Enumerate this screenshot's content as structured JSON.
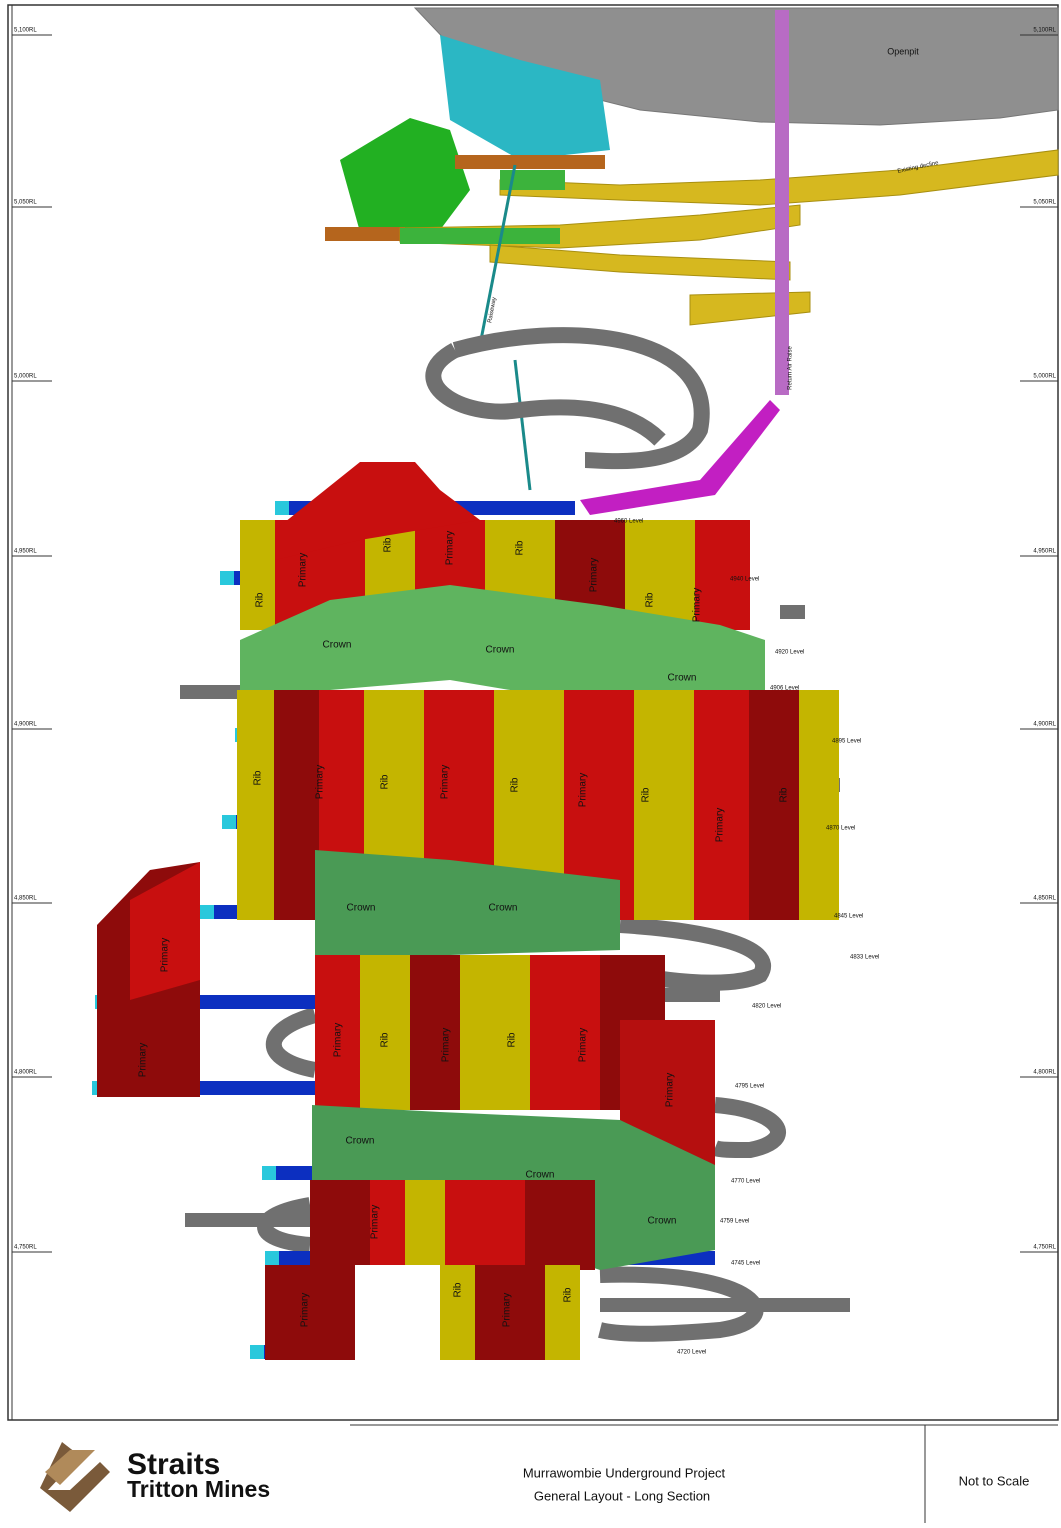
{
  "drawing": {
    "rl_labels": [
      "5,100RL",
      "5,050RL",
      "5,000RL",
      "4,950RL",
      "4,900RL",
      "4,850RL",
      "4,800RL",
      "4,750RL"
    ],
    "level_labels": [
      "4960 Level",
      "4940 Level",
      "4920 Level",
      "4906 Level",
      "4895 Level",
      "4870 Level",
      "4845 Level",
      "4833 Level",
      "4820 Level",
      "4795 Level",
      "4770 Level",
      "4759 Level",
      "4745 Level",
      "4720 Level"
    ],
    "feature_labels": {
      "openpit": "Openpit",
      "decline": "Existing decline",
      "raiseway": "Raiseway",
      "return_air": "Return Air Raise"
    },
    "stope_labels": [
      "Primary",
      "Rib",
      "Primary",
      "Rib",
      "Primary",
      "Rib",
      "Primary",
      "Rib",
      "Crown",
      "Crown",
      "Crown",
      "Rib",
      "Primary",
      "Rib",
      "Primary",
      "Rib",
      "Primary",
      "Rib",
      "Primary",
      "Rib",
      "Crown",
      "Crown",
      "Primary",
      "Primary",
      "Primary",
      "Rib",
      "Primary",
      "Rib",
      "Primary",
      "Primary",
      "Crown",
      "Crown",
      "Crown",
      "Primary",
      "Primary",
      "Rib",
      "Primary",
      "Rib"
    ]
  },
  "title_block": {
    "company_line1": "Straits",
    "company_line2": "Tritton Mines",
    "project": "Murrawombie Underground Project",
    "drawing_title": "General Layout - Long Section",
    "scale": "Not to Scale"
  }
}
